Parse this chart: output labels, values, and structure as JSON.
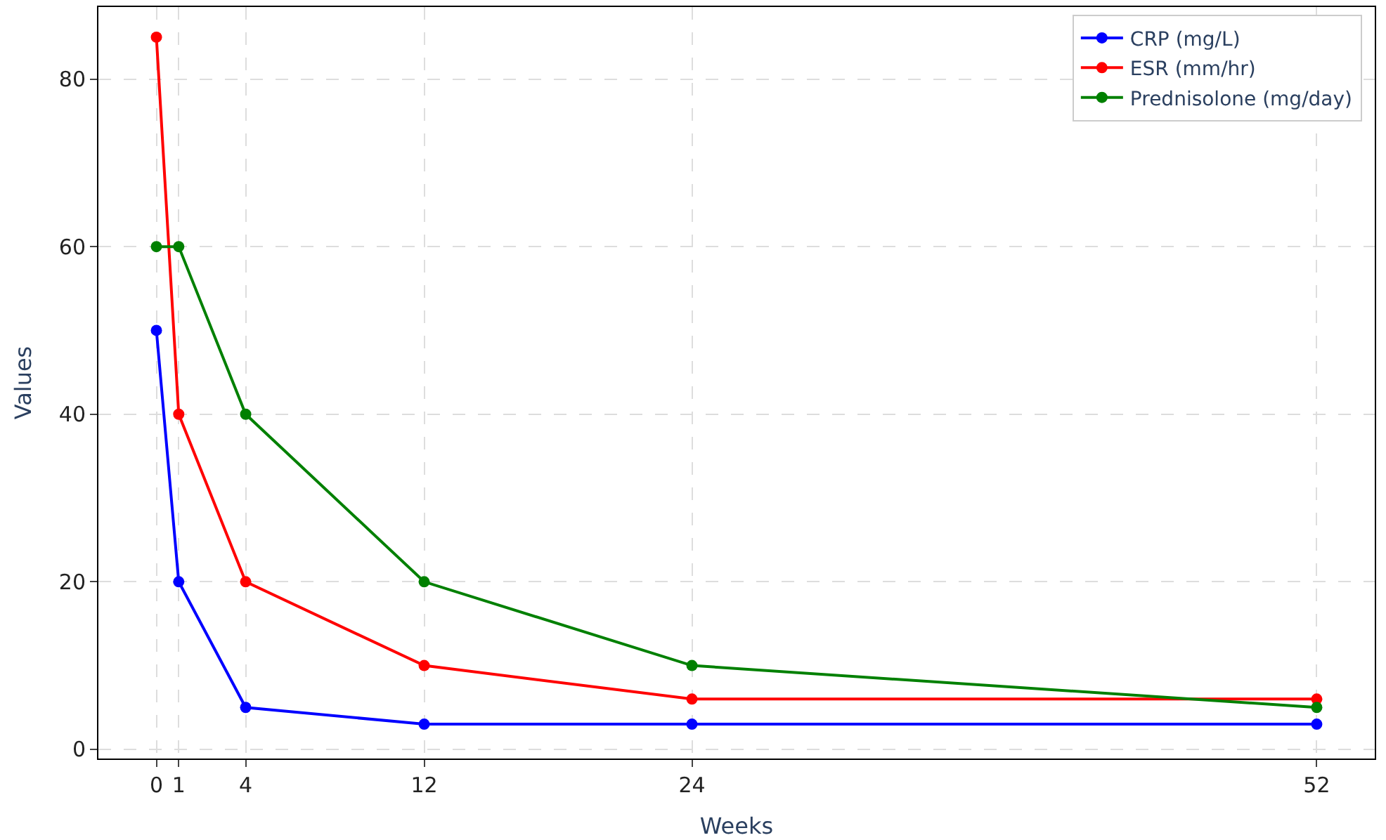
{
  "chart_data": {
    "type": "line",
    "xlabel": "Weeks",
    "ylabel": "Values",
    "x": [
      0,
      1,
      4,
      12,
      24,
      52
    ],
    "series": [
      {
        "name": "CRP (mg/L)",
        "color": "#0000ff",
        "values": [
          50,
          20,
          5,
          3,
          3,
          3
        ]
      },
      {
        "name": "ESR (mm/hr)",
        "color": "#ff0000",
        "values": [
          85,
          40,
          20,
          10,
          6,
          6
        ]
      },
      {
        "name": "Prednisolone (mg/day)",
        "color": "#008000",
        "values": [
          60,
          60,
          40,
          20,
          10,
          5
        ]
      }
    ],
    "xlim": [
      -2.6,
      54.6
    ],
    "xticks": [
      0,
      1,
      4,
      12,
      24,
      52
    ],
    "ylim": [
      -1.1,
      88.6
    ],
    "yticks": [
      0,
      20,
      40,
      60,
      80
    ],
    "grid": true,
    "legend": "top right",
    "marker": "circle",
    "line_style": "solid"
  }
}
